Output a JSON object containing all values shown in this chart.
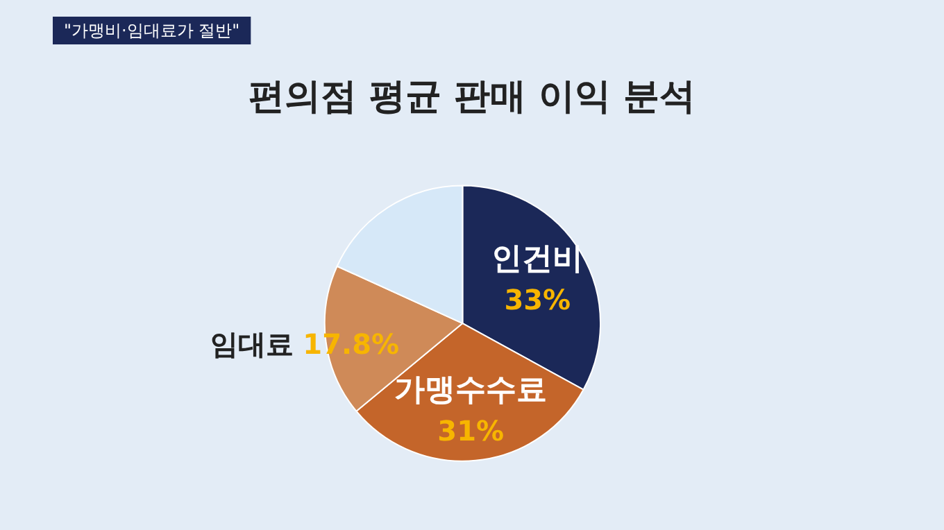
{
  "chart_data": {
    "type": "pie",
    "title": "편의점 평균 판매 이익 분석",
    "subtitle": "\"가맹비·임대료가 절반\"",
    "categories": [
      "인건비",
      "가맹수수료",
      "임대료",
      null
    ],
    "values": [
      33,
      31,
      17.8,
      18.2
    ],
    "value_labels": [
      "33%",
      "31%",
      "17.8%",
      null
    ],
    "colors": [
      "#1b2858",
      "#c4652a",
      "#cf8a58",
      "#d6e8f8"
    ],
    "legend": false
  }
}
